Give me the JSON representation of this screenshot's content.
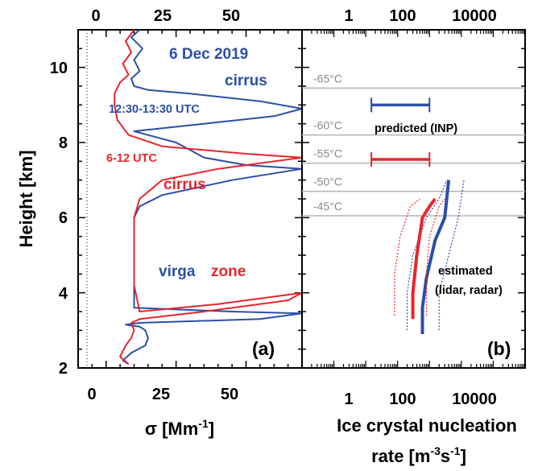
{
  "chart_data": [
    {
      "panel": "a",
      "type": "line",
      "panel_label": "(a)",
      "xlabel": "σ [Mm",
      "xlabel_sup": "-1",
      "xlabel_end": "]",
      "ylabel": "Height [km]",
      "xlim": [
        -10,
        70
      ],
      "ylim": [
        2,
        11
      ],
      "x_ticks": [
        "0",
        "25",
        "50"
      ],
      "y_ticks": [
        "2",
        "4",
        "6",
        "8",
        "10"
      ],
      "annotations": {
        "date": "6 Dec 2019",
        "cirrus_blue": "cirrus",
        "time_blue": "12:30-13:30 UTC",
        "time_red": "6-12 UTC",
        "cirrus_red": "cirrus",
        "virga": "virga",
        "zone": "zone"
      },
      "series": [
        {
          "color": "#2b4fa8",
          "points": [
            [
              8,
              2.1
            ],
            [
              6,
              2.2
            ],
            [
              9,
              2.4
            ],
            [
              14,
              2.6
            ],
            [
              15,
              2.8
            ],
            [
              14,
              3.0
            ],
            [
              12,
              3.1
            ],
            [
              7,
              3.15
            ],
            [
              12,
              3.2
            ],
            [
              55,
              3.3
            ],
            [
              70,
              3.45
            ],
            [
              45,
              3.5
            ],
            [
              10,
              3.6
            ],
            [
              10,
              4.0
            ],
            [
              10,
              6.0
            ],
            [
              12,
              6.3
            ],
            [
              20,
              6.6
            ],
            [
              45,
              7.0
            ],
            [
              70,
              7.3
            ],
            [
              50,
              7.4
            ],
            [
              35,
              7.6
            ],
            [
              30,
              7.8
            ],
            [
              25,
              8.0
            ],
            [
              15,
              8.2
            ],
            [
              10,
              8.3
            ],
            [
              35,
              8.5
            ],
            [
              60,
              8.7
            ],
            [
              70,
              8.9
            ],
            [
              55,
              9.1
            ],
            [
              30,
              9.3
            ],
            [
              15,
              9.4
            ],
            [
              10,
              9.5
            ],
            [
              9,
              9.7
            ],
            [
              12,
              9.9
            ],
            [
              10,
              10.2
            ],
            [
              13,
              10.5
            ],
            [
              9,
              10.8
            ],
            [
              12,
              11.0
            ]
          ]
        },
        {
          "color": "#e8262b",
          "points": [
            [
              8,
              2.1
            ],
            [
              5,
              2.3
            ],
            [
              7,
              2.6
            ],
            [
              9,
              2.8
            ],
            [
              10,
              3.0
            ],
            [
              9,
              3.2
            ],
            [
              12,
              3.3
            ],
            [
              35,
              3.5
            ],
            [
              65,
              3.8
            ],
            [
              70,
              4.0
            ],
            [
              40,
              3.7
            ],
            [
              12,
              3.5
            ],
            [
              10,
              4.2
            ],
            [
              10,
              6.0
            ],
            [
              12,
              6.5
            ],
            [
              20,
              7.0
            ],
            [
              40,
              7.3
            ],
            [
              70,
              7.6
            ],
            [
              50,
              7.7
            ],
            [
              20,
              7.9
            ],
            [
              8,
              8.2
            ],
            [
              4,
              8.6
            ],
            [
              3,
              9.0
            ],
            [
              3,
              9.3
            ],
            [
              5,
              9.6
            ],
            [
              8,
              9.8
            ],
            [
              6,
              10.1
            ],
            [
              9,
              10.4
            ],
            [
              7,
              10.7
            ],
            [
              10,
              11.0
            ]
          ]
        }
      ]
    },
    {
      "panel": "b",
      "type": "line",
      "panel_label": "(b)",
      "xlabel_line1": "Ice crystal nucleation",
      "xlabel_line2a": "rate [m",
      "xlabel_sup1": "-3",
      "xlabel_mid": "s",
      "xlabel_sup2": "-1",
      "xlabel_end": "]",
      "xscale": "log",
      "xlim": [
        0.01,
        100000
      ],
      "ylim": [
        2,
        11
      ],
      "x_ticks": [
        "1",
        "100",
        "10000"
      ],
      "temperature_levels": [
        {
          "label": "-65°C",
          "height": 9.45
        },
        {
          "label": "-60°C",
          "height": 8.2
        },
        {
          "label": "-55°C",
          "height": 7.45
        },
        {
          "label": "-50°C",
          "height": 6.7
        },
        {
          "label": "-45°C",
          "height": 6.05
        }
      ],
      "annotations": {
        "predicted": "predicted (INP)",
        "estimated_1": "estimated",
        "estimated_2": "(lidar, radar)"
      },
      "predicted_ranges": [
        {
          "color": "#2b4fa8",
          "height": 9.0,
          "xmin": 1.5,
          "xmax": 100
        },
        {
          "color": "#e8262b",
          "height": 7.55,
          "xmin": 1.5,
          "xmax": 100
        }
      ],
      "estimated_series": [
        {
          "color": "#2b4fa8",
          "style": "solid",
          "points": [
            [
              60,
              2.9
            ],
            [
              60,
              3.6
            ],
            [
              80,
              4.4
            ],
            [
              150,
              5.4
            ],
            [
              300,
              6.0
            ],
            [
              400,
              7.0
            ]
          ]
        },
        {
          "color": "#2b4fa8",
          "style": "dotted",
          "points": [
            [
              20,
              3.0
            ],
            [
              20,
              4.0
            ],
            [
              30,
              5.0
            ],
            [
              80,
              6.0
            ],
            [
              200,
              6.5
            ],
            [
              350,
              7.0
            ]
          ]
        },
        {
          "color": "#2b4fa8",
          "style": "dotted",
          "points": [
            [
              200,
              3.0
            ],
            [
              200,
              4.0
            ],
            [
              400,
              5.0
            ],
            [
              800,
              6.0
            ],
            [
              1200,
              7.0
            ]
          ]
        },
        {
          "color": "#e8262b",
          "style": "solid",
          "points": [
            [
              30,
              3.3
            ],
            [
              30,
              4.0
            ],
            [
              40,
              5.0
            ],
            [
              60,
              6.0
            ],
            [
              100,
              6.3
            ],
            [
              150,
              6.5
            ]
          ]
        },
        {
          "color": "#e8262b",
          "style": "dotted",
          "points": [
            [
              8,
              3.4
            ],
            [
              8,
              4.5
            ],
            [
              12,
              5.5
            ],
            [
              25,
              6.3
            ],
            [
              50,
              6.5
            ]
          ]
        },
        {
          "color": "#e8262b",
          "style": "dotted",
          "points": [
            [
              80,
              3.4
            ],
            [
              80,
              4.5
            ],
            [
              100,
              5.5
            ],
            [
              200,
              6.3
            ],
            [
              300,
              6.5
            ]
          ]
        }
      ]
    }
  ]
}
